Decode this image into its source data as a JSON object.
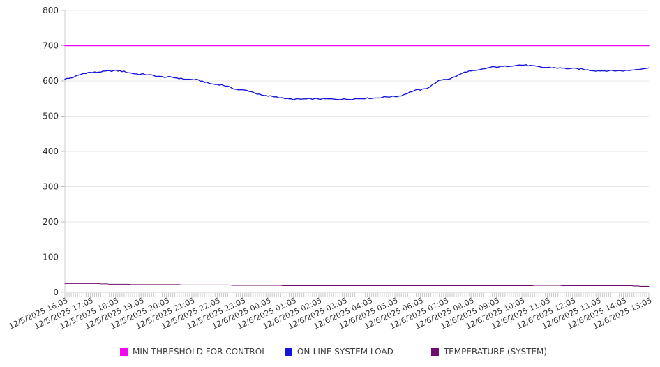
{
  "chart_data": {
    "type": "line",
    "title": "",
    "x_labels": [
      "12/5/2025 16:05",
      "12/5/2025 17:05",
      "12/5/2025 18:05",
      "12/5/2025 19:05",
      "12/5/2025 20:05",
      "12/5/2025 21:05",
      "12/5/2025 22:05",
      "12/5/2025 23:05",
      "12/6/2025 00:05",
      "12/6/2025 01:05",
      "12/6/2025 02:05",
      "12/6/2025 03:05",
      "12/6/2025 04:05",
      "12/6/2025 05:05",
      "12/6/2025 06:05",
      "12/6/2025 07:05",
      "12/6/2025 08:05",
      "12/6/2025 09:05",
      "12/6/2025 10:05",
      "12/6/2025 11:05",
      "12/6/2025 12:05",
      "12/6/2025 13:05",
      "12/6/2025 14:05",
      "12/6/2025 15:05"
    ],
    "points_per_hour": 12,
    "y_axis": {
      "min": 0,
      "max": 800,
      "tick_step": 100,
      "ticks": [
        "0",
        "100",
        "200",
        "300",
        "400",
        "500",
        "600",
        "700",
        "800"
      ]
    },
    "grid": true,
    "legend_position": "bottom",
    "series": [
      {
        "name": "MIN THRESHOLD FOR CONTROL",
        "color": "#EE0AEE",
        "values": [
          700,
          700,
          700,
          700,
          700,
          700,
          700,
          700,
          700,
          700,
          700,
          700,
          700,
          700,
          700,
          700,
          700,
          700,
          700,
          700,
          700,
          700,
          700,
          700
        ]
      },
      {
        "name": "ON-LINE SYSTEM LOAD",
        "color": "#1515DD",
        "values": [
          606,
          624,
          629,
          619,
          611,
          604,
          590,
          574,
          557,
          548,
          549,
          548,
          551,
          556,
          575,
          605,
          628,
          640,
          645,
          638,
          635,
          629,
          629,
          636
        ]
      },
      {
        "name": "TEMPERATURE (SYSTEM)",
        "color": "#6E0D6E",
        "values": [
          25,
          25,
          23,
          22,
          22,
          21,
          21,
          20,
          20,
          19,
          19,
          19,
          19,
          19,
          19,
          19,
          19,
          19,
          19,
          20,
          19,
          19,
          19,
          17
        ]
      }
    ]
  }
}
